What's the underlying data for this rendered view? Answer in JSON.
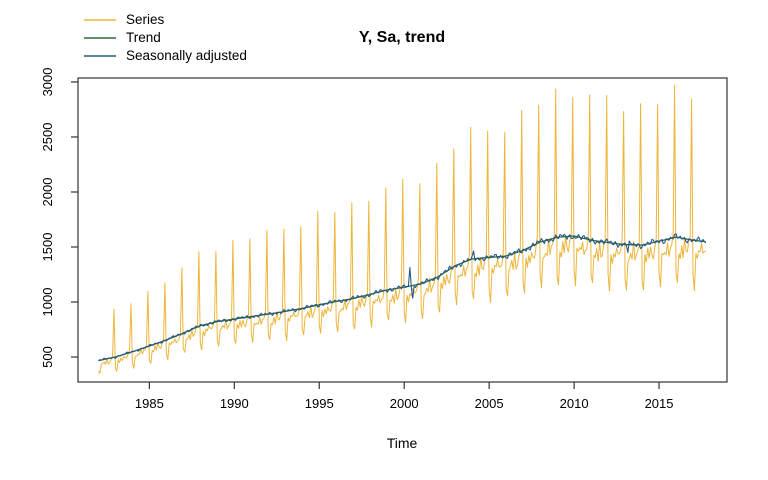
{
  "figure": {
    "title": "Y, Sa, trend",
    "x_axis_label": "Time"
  },
  "chart_data": {
    "type": "line",
    "title": "Y, Sa, trend",
    "xlabel": "Time",
    "ylabel": "",
    "frequency": "monthly",
    "x_start_year": 1982,
    "n_months": 430,
    "x_end_year": 2017.75,
    "xlim": [
      1980.8,
      2019.0
    ],
    "ylim": [
      273,
      3036
    ],
    "x_ticks": [
      1985,
      1990,
      1995,
      2000,
      2005,
      2010,
      2015
    ],
    "y_ticks": [
      500,
      1000,
      1500,
      2000,
      2500,
      3000
    ],
    "grid": false,
    "legend_position": "top-left-outside",
    "frame_color": "#333333",
    "series": [
      {
        "name": "Series",
        "color": "#EDB53A",
        "line_width": 1
      },
      {
        "name": "Trend",
        "color": "#2E6B34",
        "line_width": 1.3
      },
      {
        "name": "Seasonally adjusted",
        "color": "#27588A",
        "line_width": 1.1
      }
    ],
    "trend_anchor_points": [
      [
        1982.0,
        468
      ],
      [
        1983,
        500
      ],
      [
        1984,
        548
      ],
      [
        1985,
        600
      ],
      [
        1986,
        655
      ],
      [
        1987,
        718
      ],
      [
        1988,
        785
      ],
      [
        1989,
        822
      ],
      [
        1990,
        845
      ],
      [
        1991,
        868
      ],
      [
        1992,
        890
      ],
      [
        1993,
        915
      ],
      [
        1994,
        942
      ],
      [
        1995,
        975
      ],
      [
        1996,
        1005
      ],
      [
        1997,
        1032
      ],
      [
        1998,
        1070
      ],
      [
        1999,
        1110
      ],
      [
        2000,
        1135
      ],
      [
        2001,
        1165
      ],
      [
        2002,
        1230
      ],
      [
        2003,
        1330
      ],
      [
        2004,
        1392
      ],
      [
        2005,
        1405
      ],
      [
        2006,
        1418
      ],
      [
        2007,
        1470
      ],
      [
        2008,
        1545
      ],
      [
        2009,
        1588
      ],
      [
        2010,
        1600
      ],
      [
        2011,
        1562
      ],
      [
        2012,
        1540
      ],
      [
        2013,
        1522
      ],
      [
        2014,
        1518
      ],
      [
        2015,
        1552
      ],
      [
        2016,
        1590
      ],
      [
        2017,
        1562
      ],
      [
        2017.75,
        1548
      ]
    ],
    "seasonal_factors": [
      0.8,
      0.73,
      0.92,
      0.9,
      0.95,
      0.91,
      0.99,
      0.92,
      0.93,
      0.97,
      1.02,
      1.83
    ],
    "sa_anomalies": [
      {
        "t": 2000.3333,
        "delta": 185
      },
      {
        "t": 2000.5,
        "delta": -125
      },
      {
        "t": 2004.0833,
        "delta": 55
      },
      {
        "t": 2013.1667,
        "delta": -70
      }
    ],
    "series_irregular_amplitude": 0.02,
    "sa_irregular_amplitude": 0.011
  }
}
